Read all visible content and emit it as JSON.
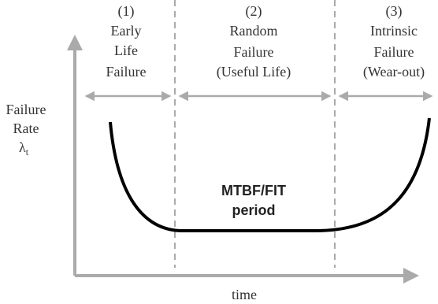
{
  "regions": [
    {
      "number": "(1)",
      "label": [
        "Early",
        "Life",
        "Failure"
      ]
    },
    {
      "number": "(2)",
      "label": [
        "Random",
        "Failure",
        "(Useful Life)"
      ]
    },
    {
      "number": "(3)",
      "label": [
        "Intrinsic",
        "Failure",
        "(Wear-out)"
      ]
    }
  ],
  "y_axis": {
    "label": [
      "Failure",
      "Rate"
    ],
    "symbol": "λ",
    "subscript": "t"
  },
  "x_axis": {
    "label": "time"
  },
  "annotation": [
    "MTBF/FIT",
    "period"
  ]
}
